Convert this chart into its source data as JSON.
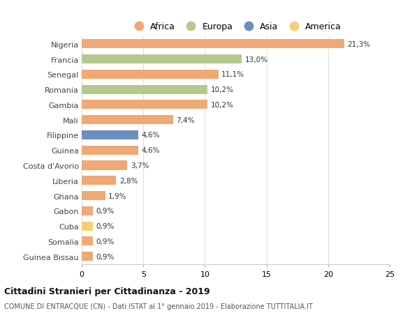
{
  "countries": [
    "Nigeria",
    "Francia",
    "Senegal",
    "Romania",
    "Gambia",
    "Mali",
    "Filippine",
    "Guinea",
    "Costa d'Avorio",
    "Liberia",
    "Ghana",
    "Gabon",
    "Cuba",
    "Somalia",
    "Guinea Bissau"
  ],
  "values": [
    21.3,
    13.0,
    11.1,
    10.2,
    10.2,
    7.4,
    4.6,
    4.6,
    3.7,
    2.8,
    1.9,
    0.9,
    0.9,
    0.9,
    0.9
  ],
  "labels": [
    "21,3%",
    "13,0%",
    "11,1%",
    "10,2%",
    "10,2%",
    "7,4%",
    "4,6%",
    "4,6%",
    "3,7%",
    "2,8%",
    "1,9%",
    "0,9%",
    "0,9%",
    "0,9%",
    "0,9%"
  ],
  "continents": [
    "Africa",
    "Europa",
    "Africa",
    "Europa",
    "Africa",
    "Africa",
    "Asia",
    "Africa",
    "Africa",
    "Africa",
    "Africa",
    "Africa",
    "America",
    "Africa",
    "Africa"
  ],
  "colors": {
    "Africa": "#F0A875",
    "Europa": "#B5C98E",
    "Asia": "#6B8FBF",
    "America": "#F5D06E"
  },
  "legend_order": [
    "Africa",
    "Europa",
    "Asia",
    "America"
  ],
  "title1": "Cittadini Stranieri per Cittadinanza - 2019",
  "title2": "COMUNE DI ENTRACQUE (CN) - Dati ISTAT al 1° gennaio 2019 - Elaborazione TUTTITALIA.IT",
  "xlim": [
    0,
    25
  ],
  "xticks": [
    0,
    5,
    10,
    15,
    20,
    25
  ],
  "background_color": "#ffffff",
  "bar_height": 0.6
}
